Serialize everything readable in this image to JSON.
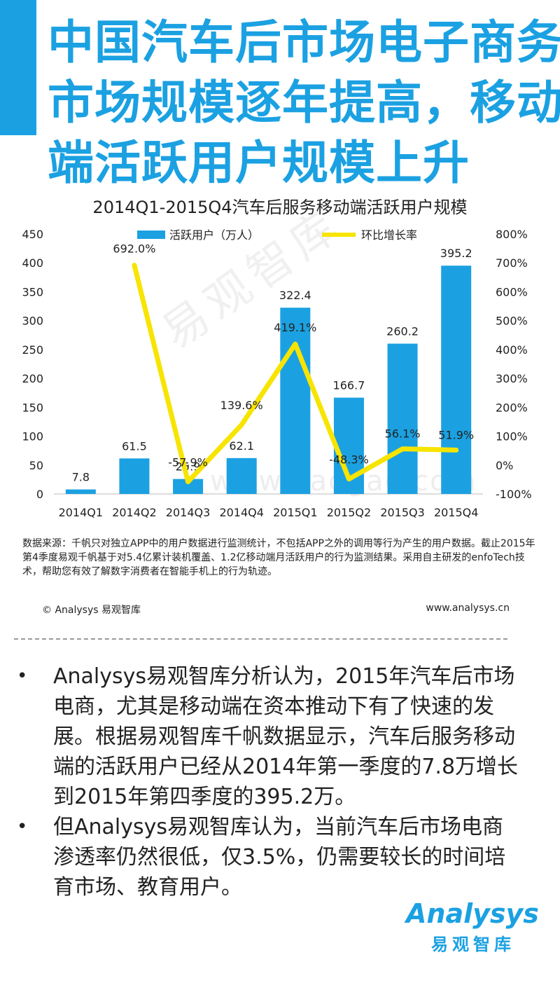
{
  "title_lines": [
    "中国汽车后市场电子商务",
    "市场规模逐年提高，移动",
    "端活跃用户规模上升"
  ],
  "chart_data": {
    "type": "bar+line",
    "title": "2014Q1-2015Q4汽车后服务移动端活跃用户规模",
    "categories": [
      "2014Q1",
      "2014Q2",
      "2014Q3",
      "2014Q4",
      "2015Q1",
      "2015Q2",
      "2015Q3",
      "2015Q4"
    ],
    "series": [
      {
        "name": "活跃用户（万人）",
        "type": "bar",
        "axis": "left",
        "color": "#1ba1e2",
        "values": [
          7.8,
          61.5,
          25.9,
          62.1,
          322.4,
          166.7,
          260.2,
          395.2
        ],
        "labels": [
          "7.8",
          "61.5",
          "25.9",
          "62.1",
          "322.4",
          "166.7",
          "260.2",
          "395.2"
        ]
      },
      {
        "name": "环比增长率",
        "type": "line",
        "axis": "right",
        "color": "#f7e400",
        "values": [
          null,
          692.0,
          -57.9,
          139.6,
          419.1,
          -48.3,
          56.1,
          51.9
        ],
        "labels": [
          "",
          "692.0%",
          "-57.9%",
          "139.6%",
          "419.1%",
          "-48.3%",
          "56.1%",
          "51.9%"
        ]
      }
    ],
    "y_left": {
      "min": 0,
      "max": 450,
      "ticks": [
        0,
        50,
        100,
        150,
        200,
        250,
        300,
        350,
        400,
        450
      ]
    },
    "y_right": {
      "min": -100,
      "max": 800,
      "ticks": [
        "-100%",
        "0%",
        "100%",
        "200%",
        "300%",
        "400%",
        "500%",
        "600%",
        "700%",
        "800%"
      ]
    },
    "legend_position": "top"
  },
  "source_text": "数据来源：千帆只对独立APP中的用户数据进行监测统计，不包括APP之外的调用等行为产生的用户数据。截止2015年第4季度易观千帆基于对5.4亿累计装机覆盖、1.2亿移动端月活跃用户的行为监测结果。采用自主研发的enfoTech技术，帮助您有效了解数字消费者在智能手机上的行为轨迹。",
  "copyright": "© Analysys 易观智库",
  "website": "www.analysys.cn",
  "watermark_cn": "易观智库",
  "watermark_url": "www.baogao.com",
  "analysis_points": [
    "Analysys易观智库分析认为，2015年汽车后市场电商，尤其是移动端在资本推动下有了快速的发展。根据易观智库千帆数据显示，汽车后服务移动端的活跃用户已经从2014年第一季度的7.8万增长到2015年第四季度的395.2万。",
    "但Analysys易观智库认为，当前汽车后市场电商渗透率仍然很低，仅3.5%，仍需要较长的时间培育市场、教育用户。"
  ],
  "bullet_symbol": "•",
  "logo": {
    "word": "Analysys",
    "cn": "易观智库"
  },
  "accent_color": "#1ba1e2"
}
